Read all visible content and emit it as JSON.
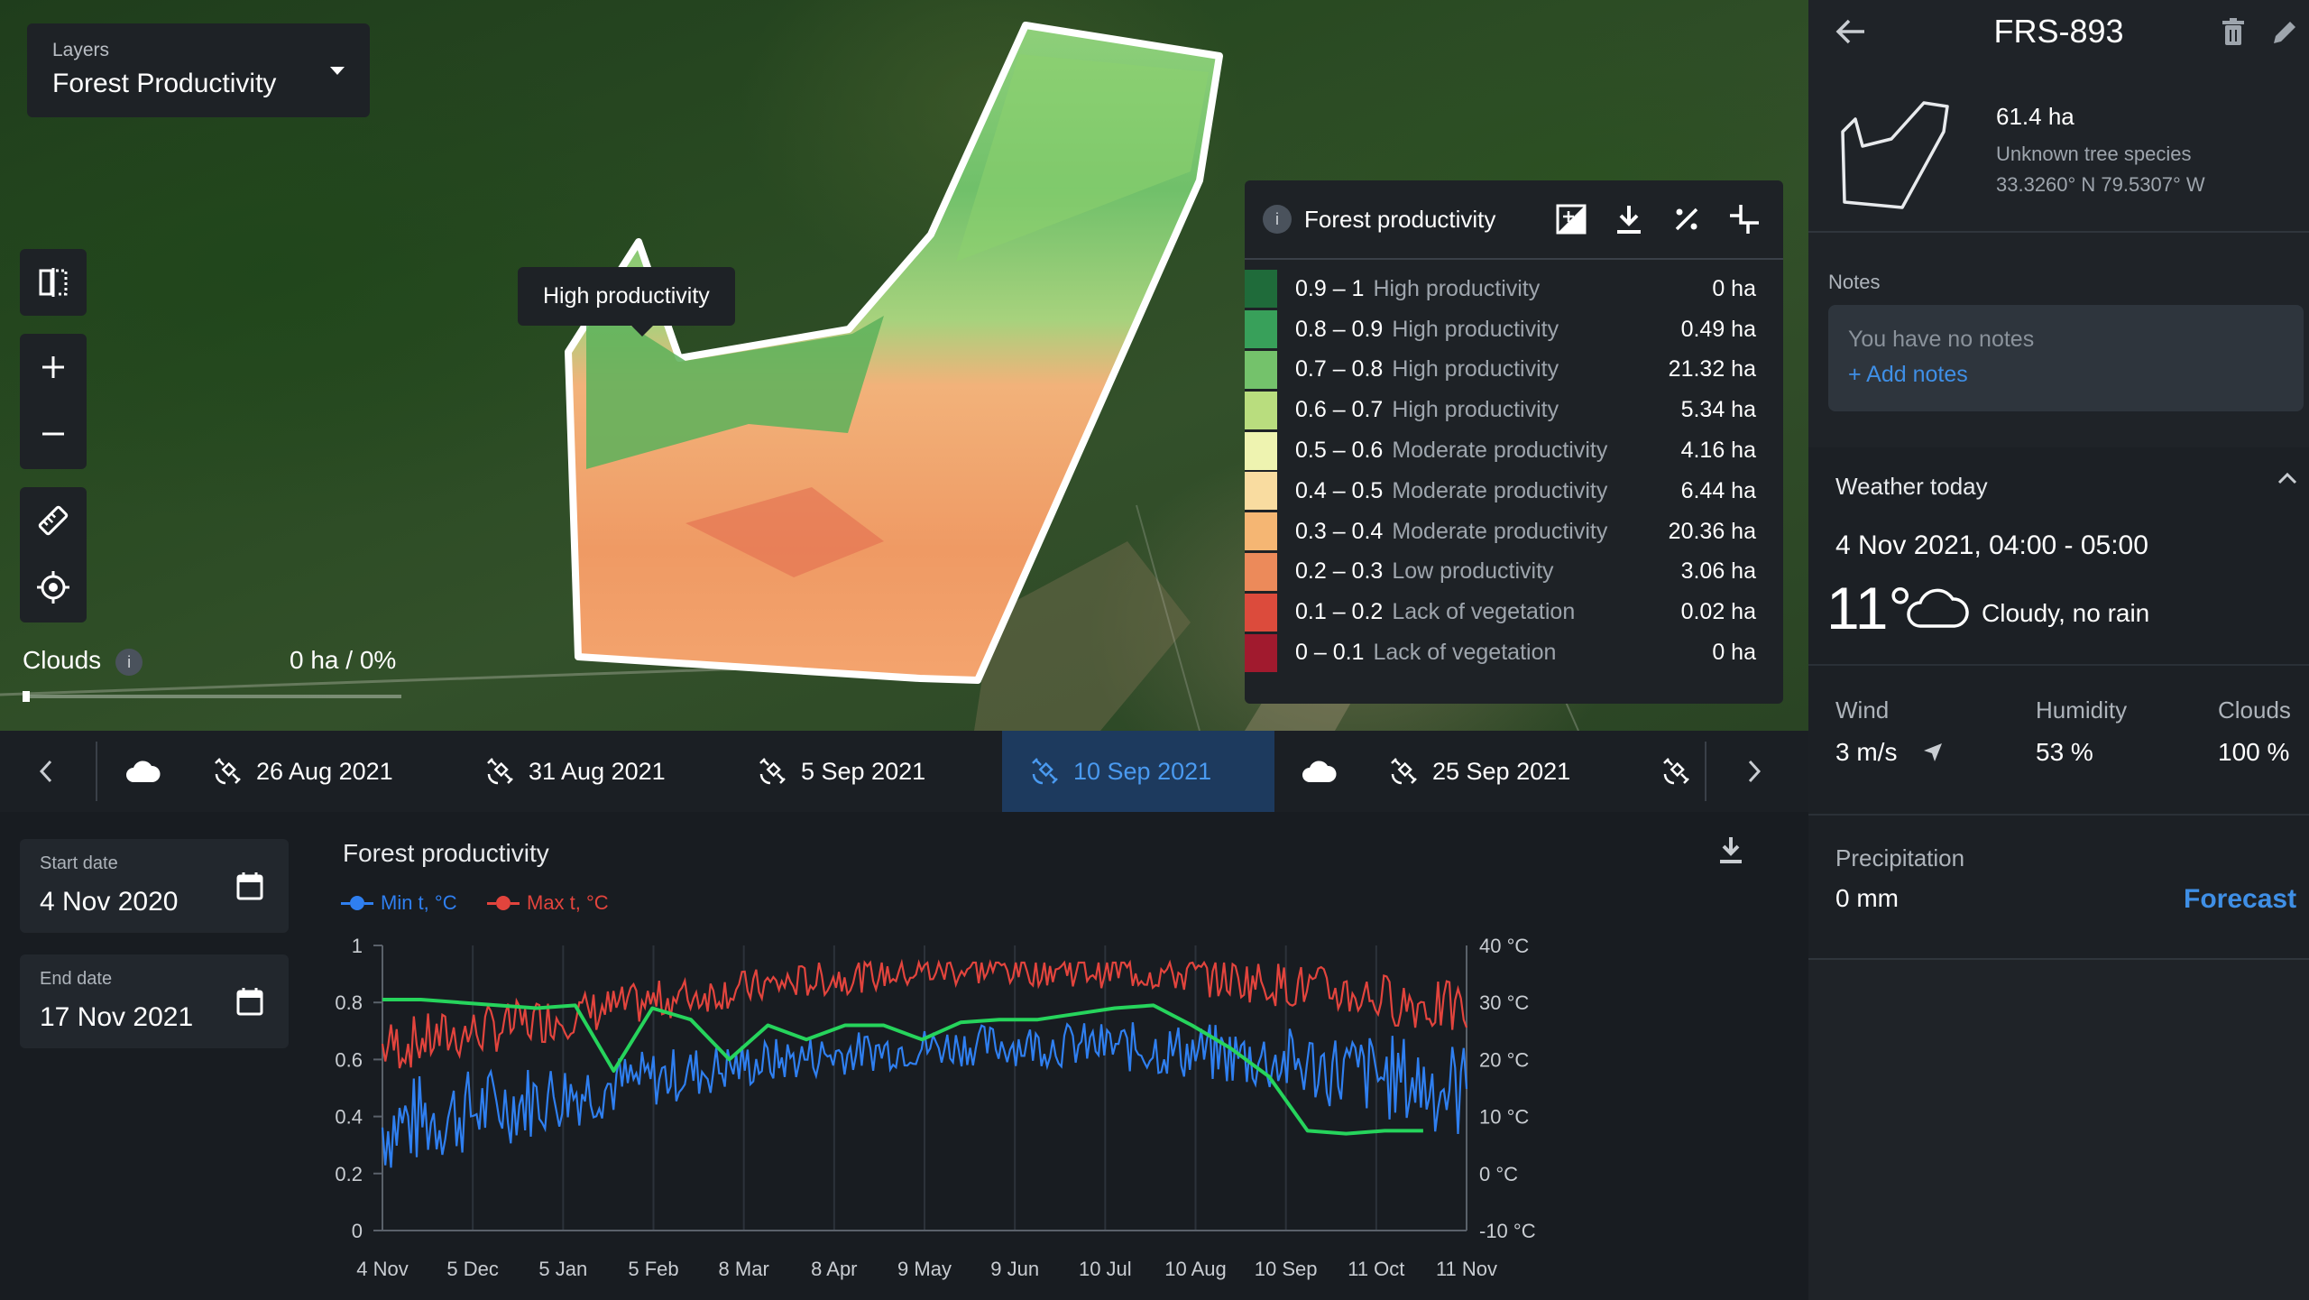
{
  "map": {
    "layers_caption": "Layers",
    "layers_value": "Forest Productivity",
    "tooltip": "High productivity",
    "clouds_label": "Clouds",
    "clouds_info": "i",
    "clouds_value": "0 ha / 0%"
  },
  "legend": {
    "title": "Forest productivity",
    "info": "i",
    "rows": [
      {
        "range": "0.9 – 1",
        "label": "High productivity",
        "area": "0 ha",
        "color": "#1f6b3a"
      },
      {
        "range": "0.8 – 0.9",
        "label": "High productivity",
        "area": "0.49 ha",
        "color": "#38a05a"
      },
      {
        "range": "0.7 – 0.8",
        "label": "High productivity",
        "area": "21.32 ha",
        "color": "#74c26b"
      },
      {
        "range": "0.6 – 0.7",
        "label": "High productivity",
        "area": "5.34 ha",
        "color": "#b9dd7e"
      },
      {
        "range": "0.5 – 0.6",
        "label": "Moderate productivity",
        "area": "4.16 ha",
        "color": "#eef3b0"
      },
      {
        "range": "0.4 – 0.5",
        "label": "Moderate productivity",
        "area": "6.44 ha",
        "color": "#f9dca0"
      },
      {
        "range": "0.3 – 0.4",
        "label": "Moderate productivity",
        "area": "20.36 ha",
        "color": "#f5b673"
      },
      {
        "range": "0.2 – 0.3",
        "label": "Low productivity",
        "area": "3.06 ha",
        "color": "#ec8a5a"
      },
      {
        "range": "0.1 – 0.2",
        "label": "Lack of vegetation",
        "area": "0.02 ha",
        "color": "#dc4b3c"
      },
      {
        "range": "0 – 0.1",
        "label": "Lack of vegetation",
        "area": "0 ha",
        "color": "#a11a2e"
      }
    ]
  },
  "timeline": {
    "items": [
      "26 Aug 2021",
      "31 Aug 2021",
      "5 Sep 2021",
      "10 Sep 2021",
      "25 Sep 2021"
    ],
    "active": "10 Sep 2021"
  },
  "dates": {
    "start_caption": "Start date",
    "start_value": "4 Nov 2020",
    "end_caption": "End date",
    "end_value": "17 Nov 2021"
  },
  "chart_data": {
    "type": "line",
    "title": "Forest productivity",
    "series": [
      {
        "name": "Min t, °C",
        "color": "#2f7ff0",
        "axis": "right"
      },
      {
        "name": "Max t, °C",
        "color": "#e2443d",
        "axis": "right"
      },
      {
        "name": "",
        "color": "#26d45c",
        "axis": "left",
        "x": [
          "4 Nov",
          "20 Nov",
          "5 Dec",
          "20 Dec",
          "5 Jan",
          "25 Jan",
          "29 Jan",
          "5 Feb",
          "20 Feb",
          "8 Mar",
          "15 Mar",
          "25 Mar",
          "8 Apr",
          "25 Apr",
          "9 May",
          "20 May",
          "9 Jun",
          "25 Jun",
          "10 Jul",
          "25 Jul",
          "10 Aug",
          "20 Aug",
          "10 Sep",
          "25 Sep",
          "1 Oct",
          "11 Oct",
          "25 Oct",
          "11 Nov"
        ],
        "values": [
          0.81,
          0.81,
          0.8,
          0.79,
          0.78,
          0.79,
          0.56,
          0.78,
          0.74,
          0.6,
          0.72,
          0.67,
          0.72,
          0.72,
          0.67,
          0.73,
          0.74,
          0.74,
          0.76,
          0.78,
          0.79,
          0.72,
          0.64,
          0.54,
          0.35,
          0.34,
          0.35,
          0.35
        ]
      }
    ],
    "left_axis": {
      "ticks": [
        "0",
        "0.2",
        "0.4",
        "0.6",
        "0.8",
        "1"
      ],
      "range": [
        0,
        1
      ]
    },
    "right_axis": {
      "ticks": [
        "-10 °C",
        "0 °C",
        "10 °C",
        "20 °C",
        "30 °C",
        "40 °C"
      ],
      "range": [
        -10,
        40
      ]
    },
    "x_ticks": [
      "4 Nov",
      "5 Dec",
      "5 Jan",
      "5 Feb",
      "8 Mar",
      "8 Apr",
      "9 May",
      "9 Jun",
      "10 Jul",
      "10 Aug",
      "10 Sep",
      "11 Oct",
      "11 Nov"
    ],
    "grid": true,
    "legend_placement": "top-left"
  },
  "side": {
    "field_id": "FRS-893",
    "area": "61.4 ha",
    "species": "Unknown tree species",
    "coords": "33.3260° N 79.5307° W",
    "notes_caption": "Notes",
    "notes_placeholder": "You have no notes",
    "add_notes": "+ Add notes",
    "weather_title": "Weather today",
    "weather_date": "4 Nov 2021, 04:00 - 05:00",
    "temp": "11°",
    "desc": "Cloudy, no rain",
    "wind_cap": "Wind",
    "wind_val": "3 m/s",
    "humidity_cap": "Humidity",
    "humidity_val": "53 %",
    "clouds_cap": "Clouds",
    "clouds_val": "100 %",
    "precip_cap": "Precipitation",
    "precip_val": "0 mm",
    "forecast": "Forecast"
  }
}
